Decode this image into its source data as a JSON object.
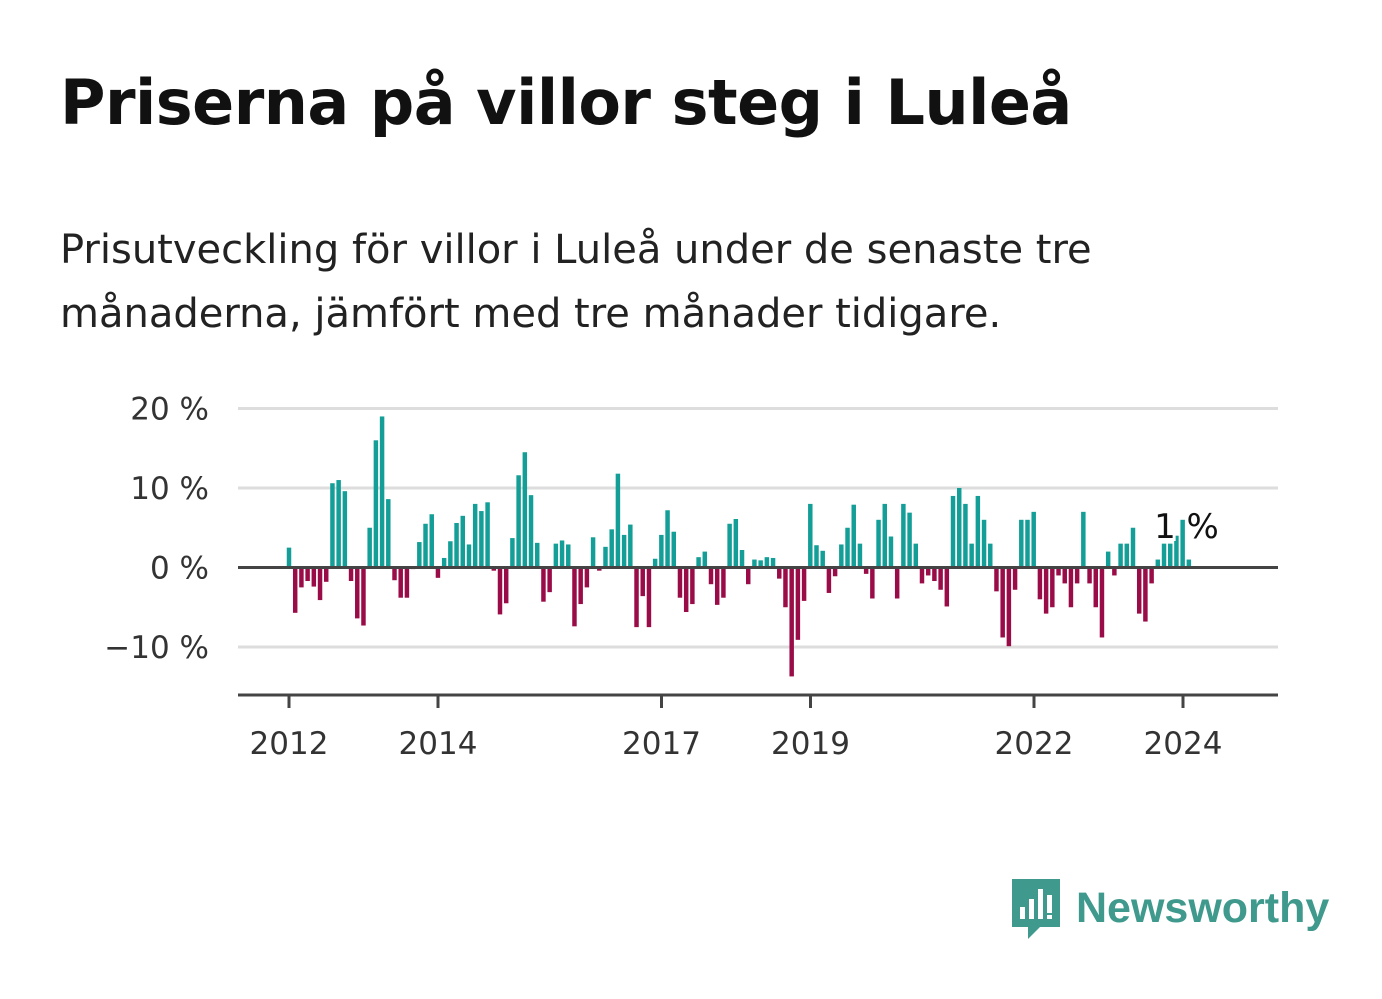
{
  "title": "Priserna på villor steg i Luleå",
  "subtitle": "Prisutveckling för villor i Luleå under de senaste tre månaderna, jämfört med tre månader tidigare.",
  "brand": {
    "name": "Newsworthy",
    "icon": "newsworthy-logo-icon"
  },
  "colors": {
    "positive": "#139e97",
    "negative": "#9a0c47",
    "grid": "#dddddd",
    "axis": "#444444"
  },
  "chart_data": {
    "type": "bar",
    "title": "Priserna på villor steg i Luleå",
    "xlabel": "",
    "ylabel": "",
    "ylim": [
      -16,
      21
    ],
    "grid": true,
    "x_start": 2012.0,
    "x_step": 0.0833,
    "y_ticks": [
      {
        "value": 20,
        "label": "20 %"
      },
      {
        "value": 10,
        "label": "10 %"
      },
      {
        "value": 0,
        "label": "0 %"
      },
      {
        "value": -10,
        "label": "−10 %"
      }
    ],
    "x_ticks": [
      {
        "value": 2012,
        "label": "2012"
      },
      {
        "value": 2014,
        "label": "2014"
      },
      {
        "value": 2017,
        "label": "2017"
      },
      {
        "value": 2019,
        "label": "2019"
      },
      {
        "value": 2022,
        "label": "2022"
      },
      {
        "value": 2024,
        "label": "2024"
      }
    ],
    "annotation": {
      "label": "1 %",
      "value": 1
    },
    "values": [
      2.5,
      -5.7,
      -2.5,
      -1.7,
      -2.4,
      -4.1,
      -1.8,
      10.6,
      11,
      9.6,
      -1.7,
      -6.4,
      -7.3,
      5,
      16,
      19,
      8.6,
      -1.6,
      -3.8,
      -3.8,
      -0.2,
      3.2,
      5.5,
      6.7,
      -1.3,
      1.2,
      3.3,
      5.6,
      6.5,
      2.9,
      8,
      7.1,
      8.2,
      -0.4,
      -5.9,
      -4.5,
      3.7,
      11.6,
      14.5,
      9.1,
      3.1,
      -4.3,
      -3.1,
      3,
      3.4,
      2.9,
      -7.4,
      -4.6,
      -2.5,
      3.8,
      -0.4,
      2.6,
      4.8,
      11.8,
      4.1,
      5.4,
      -7.5,
      -3.6,
      -7.5,
      1.1,
      4.1,
      7.2,
      4.5,
      -3.8,
      -5.6,
      -4.6,
      1.3,
      2,
      -2.1,
      -4.7,
      -3.8,
      5.5,
      6.1,
      2.2,
      -2.1,
      1,
      0.9,
      1.3,
      1.2,
      -1.4,
      -5,
      -13.7,
      -9.1,
      -4.2,
      8,
      2.8,
      2.1,
      -3.2,
      -1.1,
      2.9,
      5,
      7.9,
      3,
      -0.8,
      -3.9,
      6,
      8,
      3.9,
      -3.9,
      8,
      6.9,
      3,
      -2,
      -1,
      -1.7,
      -2.8,
      -4.9,
      9,
      10,
      8,
      3,
      9,
      6,
      3,
      -3,
      -8.8,
      -9.9,
      -2.8,
      6,
      6,
      7,
      -4,
      -5.8,
      -5,
      -1,
      -2,
      -5,
      -2,
      7,
      -2,
      -5,
      -8.8,
      2,
      -1,
      3,
      3,
      5,
      -5.8,
      -6.8,
      -2,
      1,
      3,
      3,
      4,
      6,
      1
    ]
  }
}
